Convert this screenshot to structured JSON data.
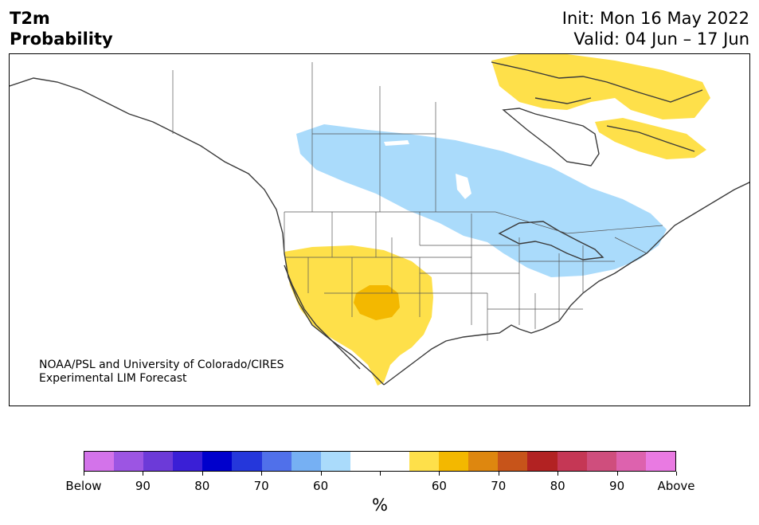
{
  "title": {
    "line1": "T2m",
    "line2": "Probability",
    "init": "Init: Mon 16 May 2022",
    "valid": "Valid: 04 Jun – 17 Jun"
  },
  "credit": {
    "line1": "NOAA/PSL and University of Colorado/CIRES",
    "line2": "Experimental LIM Forecast"
  },
  "colorbar": {
    "colors": [
      "#d373ea",
      "#9c55e3",
      "#6c3ad8",
      "#3a1fd6",
      "#0000cc",
      "#2537db",
      "#5070ea",
      "#76b0f3",
      "#aadbfb",
      "#ffffff",
      "#ffffff",
      "#fee04a",
      "#f3b800",
      "#de870f",
      "#c7541a",
      "#b22222",
      "#c53755",
      "#cf4e7d",
      "#dd62ae",
      "#e97ae2"
    ],
    "tick_labels": [
      "Below",
      "90",
      "80",
      "70",
      "60",
      "60",
      "70",
      "80",
      "90",
      "Above"
    ],
    "unit": "%"
  },
  "map": {
    "region": "North America",
    "shading": [
      {
        "category": "above-normal 55-60%",
        "color": "#fee04a",
        "areas": [
          "Southwest US",
          "Baja California",
          "Canadian Arctic Archipelago",
          "Northern Quebec"
        ]
      },
      {
        "category": "above-normal 60-65%",
        "color": "#f3b800",
        "areas": [
          "New Mexico / Texas Panhandle"
        ]
      },
      {
        "category": "below-normal 55-60%",
        "color": "#aadbfb",
        "areas": [
          "Canadian Prairies",
          "Great Lakes",
          "Northeast US"
        ]
      }
    ]
  }
}
